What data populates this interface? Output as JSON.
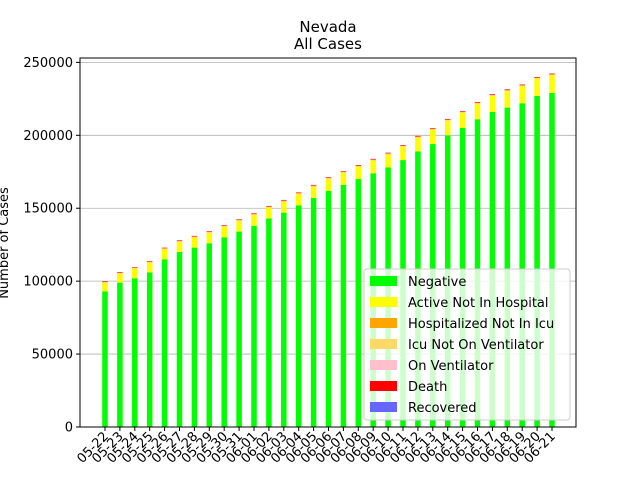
{
  "chart_data": {
    "type": "bar",
    "stacked": true,
    "title": "Nevada",
    "subtitle": "All Cases",
    "xlabel": "",
    "ylabel": "Number of Cases",
    "ylim": [
      0,
      253000
    ],
    "yticks": [
      0,
      50000,
      100000,
      150000,
      200000,
      250000
    ],
    "grid": "y",
    "legend_position": "lower-right",
    "categories": [
      "05-22",
      "05-23",
      "05-24",
      "05-25",
      "05-26",
      "05-27",
      "05-28",
      "05-29",
      "05-30",
      "05-31",
      "06-01",
      "06-02",
      "06-03",
      "06-04",
      "06-05",
      "06-06",
      "06-07",
      "06-08",
      "06-09",
      "06-10",
      "06-11",
      "06-12",
      "06-13",
      "06-14",
      "06-15",
      "06-16",
      "06-17",
      "06-18",
      "06-19",
      "06-20",
      "06-21"
    ],
    "series": [
      {
        "name": "Negative",
        "color": "#00ff00",
        "values": [
          93000,
          99000,
          102000,
          106000,
          115000,
          120000,
          123000,
          126000,
          130000,
          134000,
          138000,
          143000,
          147000,
          152000,
          157000,
          162000,
          166000,
          170000,
          174000,
          178000,
          183000,
          189000,
          194000,
          200000,
          205000,
          211000,
          216000,
          219000,
          222000,
          227000,
          229000
        ]
      },
      {
        "name": "Active Not In Hospital",
        "color": "#ffff00",
        "values": [
          6200,
          6500,
          6800,
          7000,
          7200,
          7200,
          7300,
          7500,
          7600,
          7600,
          7700,
          7800,
          7900,
          8000,
          8200,
          8400,
          8600,
          8800,
          9000,
          9200,
          9400,
          9700,
          10000,
          10300,
          10600,
          10900,
          11200,
          11500,
          11800,
          12000,
          12300
        ]
      },
      {
        "name": "Hospitalized Not In Icu",
        "color": "#ffa500",
        "values": [
          220,
          220,
          220,
          220,
          230,
          230,
          230,
          230,
          240,
          240,
          240,
          240,
          250,
          250,
          250,
          260,
          260,
          270,
          280,
          290,
          300,
          310,
          320,
          330,
          340,
          350,
          360,
          370,
          380,
          390,
          400
        ]
      },
      {
        "name": "Icu Not On Ventilator",
        "color": "#ffd966",
        "values": [
          60,
          60,
          60,
          60,
          60,
          60,
          60,
          60,
          60,
          60,
          60,
          60,
          60,
          60,
          60,
          60,
          60,
          60,
          60,
          60,
          60,
          60,
          60,
          60,
          60,
          60,
          70,
          70,
          70,
          70,
          70
        ]
      },
      {
        "name": "On Ventilator",
        "color": "#ffc0cb",
        "values": [
          50,
          50,
          50,
          50,
          50,
          50,
          50,
          50,
          50,
          50,
          50,
          50,
          50,
          50,
          50,
          50,
          50,
          50,
          50,
          50,
          50,
          50,
          50,
          50,
          50,
          50,
          50,
          50,
          50,
          50,
          50
        ]
      },
      {
        "name": "Death",
        "color": "#ff0000",
        "values": [
          390,
          400,
          400,
          410,
          410,
          410,
          410,
          420,
          420,
          420,
          420,
          430,
          430,
          430,
          440,
          440,
          440,
          450,
          450,
          460,
          460,
          470,
          470,
          480,
          480,
          490,
          490,
          500,
          500,
          500,
          510
        ]
      },
      {
        "name": "Recovered",
        "color": "#6666ff",
        "values": [
          0,
          0,
          0,
          0,
          0,
          0,
          0,
          0,
          0,
          0,
          0,
          0,
          0,
          0,
          0,
          0,
          0,
          0,
          0,
          0,
          0,
          0,
          0,
          0,
          0,
          0,
          0,
          0,
          0,
          0,
          0
        ]
      }
    ]
  }
}
